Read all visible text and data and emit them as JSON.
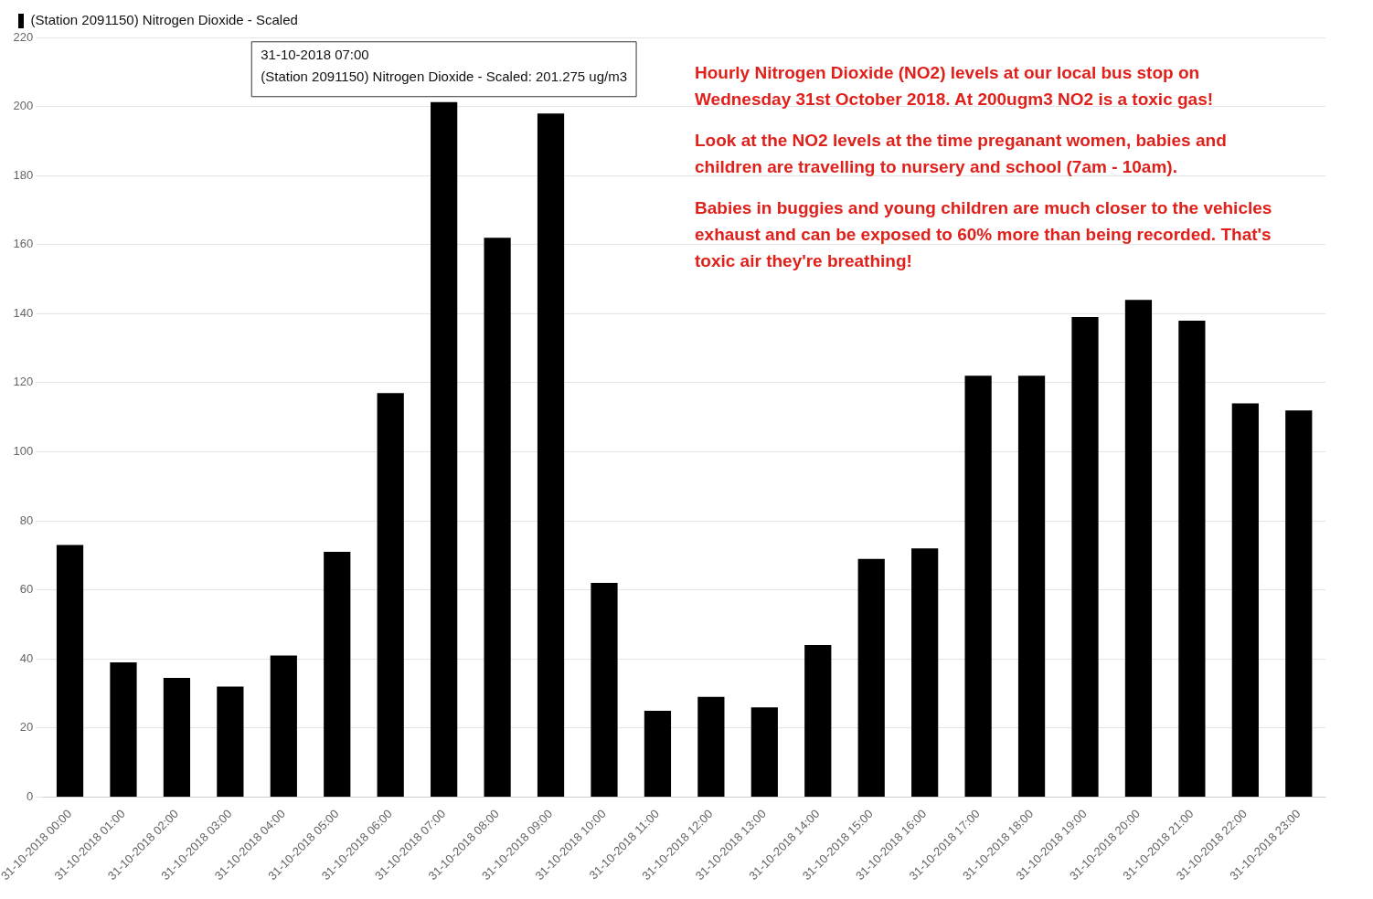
{
  "chart_data": {
    "type": "bar",
    "categories": [
      "31-10-2018 00:00",
      "31-10-2018 01:00",
      "31-10-2018 02:00",
      "31-10-2018 03:00",
      "31-10-2018 04:00",
      "31-10-2018 05:00",
      "31-10-2018 06:00",
      "31-10-2018 07:00",
      "31-10-2018 08:00",
      "31-10-2018 09:00",
      "31-10-2018 10:00",
      "31-10-2018 11:00",
      "31-10-2018 12:00",
      "31-10-2018 13:00",
      "31-10-2018 14:00",
      "31-10-2018 15:00",
      "31-10-2018 16:00",
      "31-10-2018 17:00",
      "31-10-2018 18:00",
      "31-10-2018 19:00",
      "31-10-2018 20:00",
      "31-10-2018 21:00",
      "31-10-2018 22:00",
      "31-10-2018 23:00"
    ],
    "series": [
      {
        "name": "(Station 2091150) Nitrogen Dioxide - Scaled",
        "color": "#000000",
        "values": [
          73,
          39,
          34.5,
          32,
          41,
          71,
          117,
          201.275,
          162,
          198,
          62,
          25,
          29,
          26,
          44,
          69,
          72,
          122,
          122,
          139,
          144,
          138,
          114,
          112
        ]
      }
    ],
    "ylim": [
      0,
      220
    ],
    "yticks": [
      0,
      20,
      40,
      60,
      80,
      100,
      120,
      140,
      160,
      180,
      200,
      220
    ],
    "grid": "y",
    "legend": "top left",
    "annotations": [
      {
        "text": "31-10-2018 07:00\n(Station 2091150) Nitrogen Dioxide - Scaled: 201.275 ug/m3",
        "x": "31-10-2018 07:00",
        "y": 201.275
      },
      "Hourly Nitrogen Dioxide (NO2) levels at our local bus stop on Wednesday 31st October 2018. At 200ugm3 NO2 is a toxic gas!",
      "Look at the NO2 levels at the time preganant women, babies and children are travelling to nursery and school (7am - 10am).",
      "Babies in buggies and young children are much closer to the vehicles exhaust and can be exposed to 60% more than being recorded. That's toxic air they're breathing!"
    ]
  }
}
